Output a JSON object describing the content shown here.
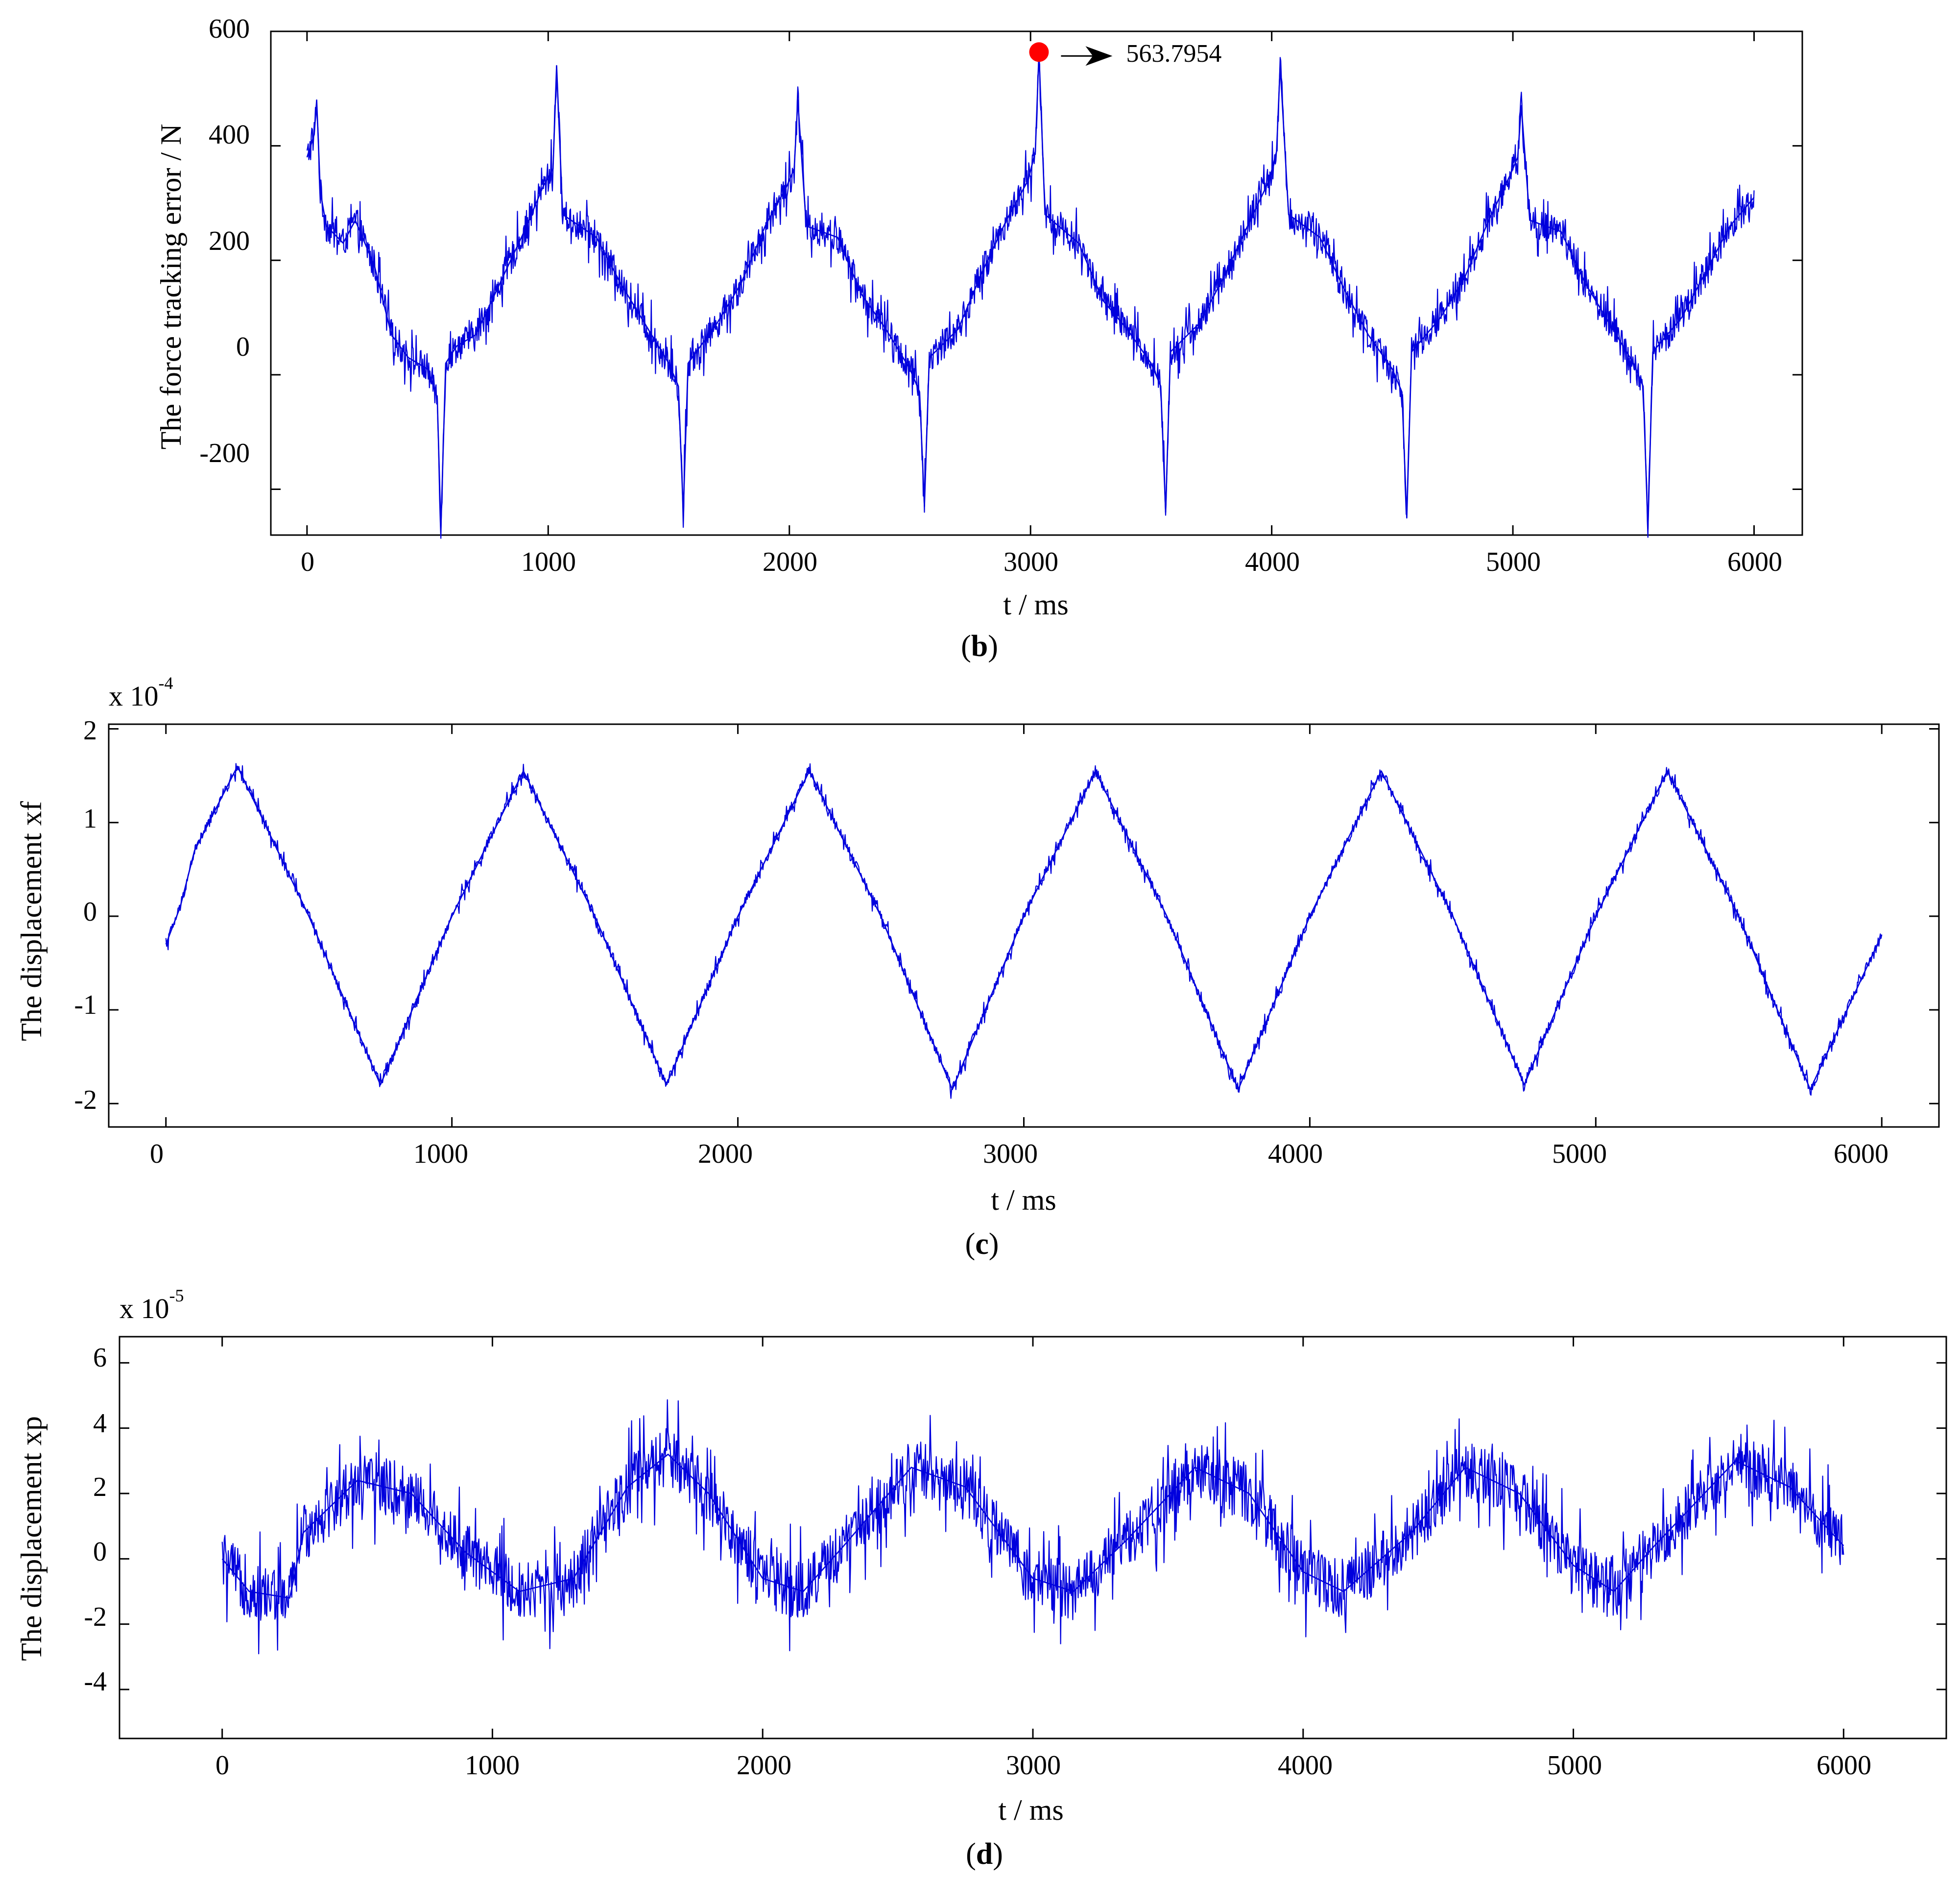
{
  "figure": {
    "colors": {
      "line": "#0000dd",
      "marker": "#ff0000",
      "axes": "#000000"
    }
  },
  "chart_data": [
    {
      "id": "b",
      "type": "line",
      "title": "",
      "panel_label": "b",
      "xlabel": "t / ms",
      "ylabel": "The force tracking error / N",
      "exponent": null,
      "xlim": [
        -150,
        6200
      ],
      "ylim": [
        -280,
        600
      ],
      "xticks": [
        0,
        1000,
        2000,
        3000,
        4000,
        5000,
        6000
      ],
      "xtick_labels": [
        "0",
        "1000",
        "2000",
        "3000",
        "4000",
        "5000",
        "6000"
      ],
      "yticks": [
        -200,
        0,
        200,
        400,
        600
      ],
      "ytick_labels": [
        "-200",
        "0",
        "200",
        "400",
        "600"
      ],
      "grid": false,
      "series": [
        {
          "name": "force tracking error",
          "color": "#0000dd",
          "noise_amplitude": 55,
          "points": [
            [
              0,
              380
            ],
            [
              30,
              420
            ],
            [
              40,
              480
            ],
            [
              55,
              320
            ],
            [
              80,
              260
            ],
            [
              150,
              230
            ],
            [
              200,
              270
            ],
            [
              280,
              190
            ],
            [
              350,
              70
            ],
            [
              420,
              30
            ],
            [
              500,
              10
            ],
            [
              540,
              -40
            ],
            [
              555,
              -270
            ],
            [
              575,
              20
            ],
            [
              620,
              50
            ],
            [
              700,
              70
            ],
            [
              800,
              160
            ],
            [
              900,
              250
            ],
            [
              980,
              330
            ],
            [
              1020,
              360
            ],
            [
              1035,
              540
            ],
            [
              1060,
              280
            ],
            [
              1200,
              240
            ],
            [
              1300,
              160
            ],
            [
              1400,
              90
            ],
            [
              1500,
              20
            ],
            [
              1540,
              -20
            ],
            [
              1560,
              -240
            ],
            [
              1580,
              20
            ],
            [
              1700,
              90
            ],
            [
              1800,
              160
            ],
            [
              1900,
              260
            ],
            [
              1990,
              330
            ],
            [
              2020,
              360
            ],
            [
              2035,
              480
            ],
            [
              2070,
              260
            ],
            [
              2200,
              240
            ],
            [
              2300,
              140
            ],
            [
              2400,
              80
            ],
            [
              2500,
              10
            ],
            [
              2540,
              -30
            ],
            [
              2560,
              -230
            ],
            [
              2580,
              30
            ],
            [
              2700,
              80
            ],
            [
              2800,
              180
            ],
            [
              2900,
              270
            ],
            [
              2990,
              340
            ],
            [
              3020,
              390
            ],
            [
              3035,
              563.7954
            ],
            [
              3060,
              280
            ],
            [
              3200,
              230
            ],
            [
              3300,
              130
            ],
            [
              3400,
              80
            ],
            [
              3500,
              20
            ],
            [
              3540,
              -20
            ],
            [
              3560,
              -240
            ],
            [
              3580,
              40
            ],
            [
              3700,
              90
            ],
            [
              3800,
              170
            ],
            [
              3900,
              260
            ],
            [
              3990,
              340
            ],
            [
              4020,
              390
            ],
            [
              4035,
              540
            ],
            [
              4070,
              280
            ],
            [
              4200,
              240
            ],
            [
              4300,
              150
            ],
            [
              4400,
              70
            ],
            [
              4500,
              10
            ],
            [
              4540,
              -30
            ],
            [
              4560,
              -250
            ],
            [
              4580,
              40
            ],
            [
              4700,
              100
            ],
            [
              4800,
              170
            ],
            [
              4900,
              270
            ],
            [
              4990,
              350
            ],
            [
              5020,
              380
            ],
            [
              5035,
              470
            ],
            [
              5070,
              270
            ],
            [
              5200,
              250
            ],
            [
              5300,
              160
            ],
            [
              5400,
              90
            ],
            [
              5500,
              20
            ],
            [
              5540,
              -20
            ],
            [
              5560,
              -270
            ],
            [
              5580,
              40
            ],
            [
              5700,
              100
            ],
            [
              5800,
              180
            ],
            [
              5900,
              260
            ],
            [
              6000,
              310
            ]
          ]
        }
      ],
      "annotations": [
        {
          "text": "563.7954",
          "x": 3035,
          "y": 563.7954,
          "marker": "filled-circle",
          "color": "#ff0000",
          "arrow": "right"
        }
      ]
    },
    {
      "id": "c",
      "type": "line",
      "title": "",
      "panel_label": "c",
      "xlabel": "t / ms",
      "ylabel": "The displacement xf",
      "exponent": {
        "base": "x 10",
        "power": "-4"
      },
      "xlim": [
        -200,
        6200
      ],
      "ylim": [
        -2.25,
        2.05
      ],
      "xticks": [
        0,
        1000,
        2000,
        3000,
        4000,
        5000,
        6000
      ],
      "xtick_labels": [
        "0",
        "1000",
        "2000",
        "3000",
        "4000",
        "5000",
        "6000"
      ],
      "yticks": [
        -2,
        -1,
        0,
        1,
        2
      ],
      "ytick_labels": [
        "-2",
        "-1",
        "0",
        "1",
        "2"
      ],
      "grid": false,
      "series": [
        {
          "name": "displacement xf",
          "color": "#0000dd",
          "noise_amplitude": 0.12,
          "points": [
            [
              0,
              -0.3
            ],
            [
              50,
              0.1
            ],
            [
              100,
              0.7
            ],
            [
              250,
              1.6
            ],
            [
              500,
              0.0
            ],
            [
              750,
              -1.8
            ],
            [
              1000,
              0.0
            ],
            [
              1250,
              1.55
            ],
            [
              1500,
              0.0
            ],
            [
              1750,
              -1.8
            ],
            [
              2000,
              0.0
            ],
            [
              2250,
              1.55
            ],
            [
              2500,
              0.0
            ],
            [
              2750,
              -1.85
            ],
            [
              3000,
              0.0
            ],
            [
              3250,
              1.55
            ],
            [
              3500,
              0.0
            ],
            [
              3750,
              -1.85
            ],
            [
              4000,
              0.0
            ],
            [
              4250,
              1.55
            ],
            [
              4500,
              0.0
            ],
            [
              4750,
              -1.8
            ],
            [
              5000,
              0.0
            ],
            [
              5250,
              1.55
            ],
            [
              5500,
              0.0
            ],
            [
              5750,
              -1.85
            ],
            [
              6000,
              -0.2
            ]
          ]
        }
      ],
      "annotations": []
    },
    {
      "id": "d",
      "type": "line",
      "title": "",
      "panel_label": "d",
      "xlabel": "t / ms",
      "ylabel": "The displacement xp",
      "exponent": {
        "base": "x 10",
        "power": "-5"
      },
      "xlim": [
        -380,
        6380
      ],
      "ylim": [
        -5.5,
        6.8
      ],
      "xticks": [
        0,
        1000,
        2000,
        3000,
        4000,
        5000,
        6000
      ],
      "xtick_labels": [
        "0",
        "1000",
        "2000",
        "3000",
        "4000",
        "5000",
        "6000"
      ],
      "yticks": [
        -4,
        -2,
        0,
        2,
        4,
        6
      ],
      "ytick_labels": [
        "-4",
        "-2",
        "0",
        "2",
        "4",
        "6"
      ],
      "grid": false,
      "series": [
        {
          "name": "displacement xp",
          "color": "#0000dd",
          "noise_amplitude": 1.8,
          "points": [
            [
              0,
              0.0
            ],
            [
              100,
              -1.0
            ],
            [
              250,
              -1.2
            ],
            [
              300,
              0.8
            ],
            [
              500,
              2.4
            ],
            [
              700,
              2.0
            ],
            [
              900,
              0.2
            ],
            [
              1100,
              -1.0
            ],
            [
              1300,
              -0.6
            ],
            [
              1500,
              2.2
            ],
            [
              1650,
              3.2
            ],
            [
              1800,
              2.0
            ],
            [
              2000,
              -0.6
            ],
            [
              2150,
              -1.0
            ],
            [
              2300,
              0.4
            ],
            [
              2550,
              2.8
            ],
            [
              2750,
              2.2
            ],
            [
              3000,
              -0.6
            ],
            [
              3150,
              -1.0
            ],
            [
              3350,
              0.6
            ],
            [
              3600,
              2.8
            ],
            [
              3800,
              2.0
            ],
            [
              4000,
              -0.4
            ],
            [
              4150,
              -1.0
            ],
            [
              4400,
              0.8
            ],
            [
              4600,
              2.8
            ],
            [
              4800,
              2.0
            ],
            [
              5000,
              -0.2
            ],
            [
              5150,
              -1.0
            ],
            [
              5300,
              0.4
            ],
            [
              5600,
              3.0
            ],
            [
              5800,
              2.2
            ],
            [
              6000,
              0.4
            ]
          ]
        }
      ],
      "annotations": []
    }
  ]
}
